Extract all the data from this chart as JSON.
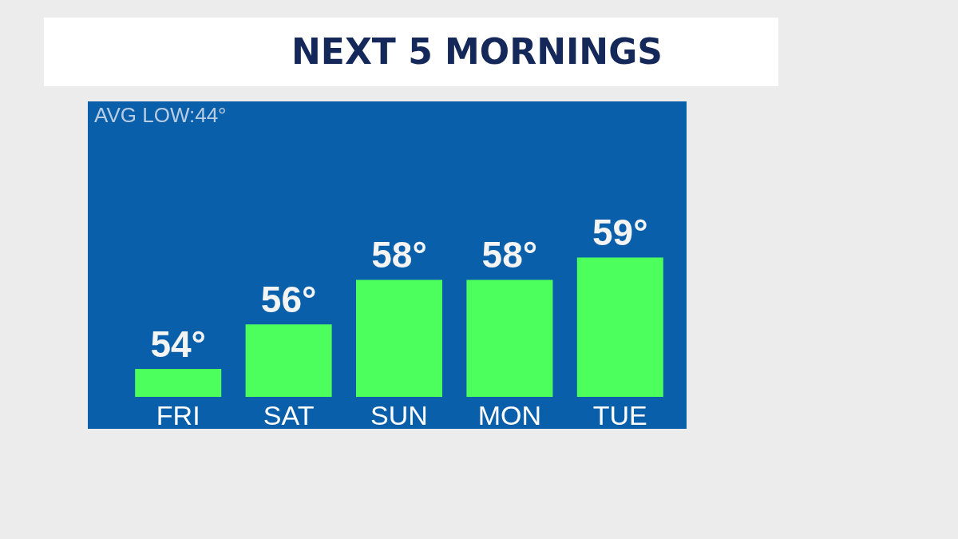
{
  "chart_data": {
    "type": "bar",
    "title": "NEXT 5 MORNINGS",
    "categories": [
      "FRI",
      "SAT",
      "SUN",
      "MON",
      "TUE"
    ],
    "values": [
      54,
      56,
      58,
      58,
      59
    ],
    "value_labels": [
      "54°",
      "56°",
      "58°",
      "58°",
      "59°"
    ],
    "color": "#4cff5c",
    "ylim": [
      52.75,
      66
    ],
    "annotations": [
      "AVG LOW:44°"
    ],
    "grid": false
  }
}
